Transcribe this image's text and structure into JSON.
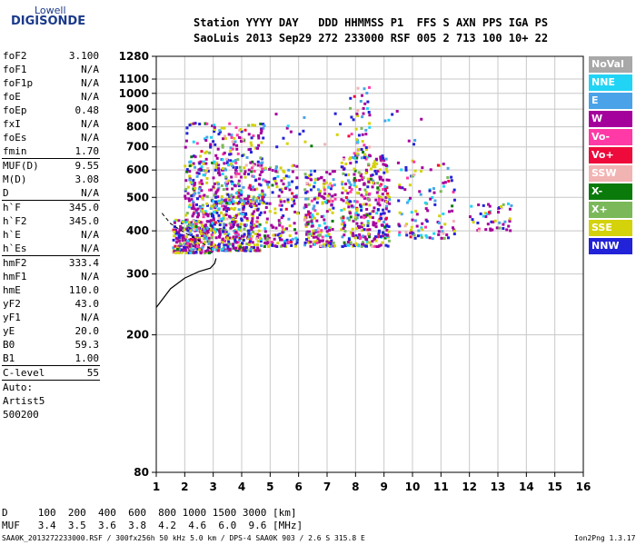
{
  "logo": {
    "top": "Lowell",
    "bottom": "DIGISONDE"
  },
  "header": {
    "line1": "Station YYYY DAY   DDD HHMMSS P1  FFS S AXN PPS IGA PS",
    "line2": "SaoLuis 2013 Sep29 272 233000 RSF 005 2 713 100 10+ 22"
  },
  "params_groups": [
    [
      [
        "foF2",
        "3.100"
      ],
      [
        "foF1",
        "N/A"
      ],
      [
        "foF1p",
        "N/A"
      ],
      [
        "foE",
        "N/A"
      ],
      [
        "foEp",
        "0.48"
      ],
      [
        "fxI",
        "N/A"
      ],
      [
        "foEs",
        "N/A"
      ],
      [
        "fmin",
        "1.70"
      ]
    ],
    [
      [
        "MUF(D)",
        "9.55"
      ],
      [
        "M(D)",
        "3.08"
      ],
      [
        "D",
        "N/A"
      ]
    ],
    [
      [
        "h`F",
        "345.0"
      ],
      [
        "h`F2",
        "345.0"
      ],
      [
        "h`E",
        "N/A"
      ],
      [
        "h`Es",
        "N/A"
      ]
    ],
    [
      [
        "hmF2",
        "333.4"
      ],
      [
        "hmF1",
        "N/A"
      ],
      [
        "hmE",
        "110.0"
      ],
      [
        "yF2",
        "43.0"
      ],
      [
        "yF1",
        "N/A"
      ],
      [
        "yE",
        "20.0"
      ],
      [
        "B0",
        "59.3"
      ],
      [
        "B1",
        "1.00"
      ]
    ],
    [
      [
        "C-level",
        "55"
      ]
    ]
  ],
  "autoscaling": [
    "Auto:",
    "Artist5",
    "500200"
  ],
  "legend": [
    {
      "label": "NoVal",
      "color": "#a8a8a8"
    },
    {
      "label": "NNE",
      "color": "#21d4f5"
    },
    {
      "label": "E",
      "color": "#4aa3e8"
    },
    {
      "label": "W",
      "color": "#a4009c"
    },
    {
      "label": "Vo-",
      "color": "#ff3aa6"
    },
    {
      "label": "Vo+",
      "color": "#ee0a3a"
    },
    {
      "label": "SSW",
      "color": "#f2b3b3"
    },
    {
      "label": "X-",
      "color": "#0a7a0a"
    },
    {
      "label": "X+",
      "color": "#7ab85a"
    },
    {
      "label": "SSE",
      "color": "#d4d20a"
    },
    {
      "label": "NNW",
      "color": "#2222d8"
    }
  ],
  "footer": {
    "d_row": "D     100  200  400  600  800 1000 1500 3000 [km]",
    "muf_row": "MUF   3.4  3.5  3.6  3.8  4.2  4.6  6.0  9.6 [MHz]",
    "file_line": "SAA0K_2013272233000.RSF / 300fx256h 50 kHz 5.0 km / DPS-4 SAA0K 903 / 2.6 S 315.8 E",
    "version": "Ion2Png 1.3.17"
  },
  "chart_data": {
    "type": "scatter",
    "xlim": [
      1,
      16
    ],
    "x_ticks": [
      "1",
      "2",
      "3",
      "4",
      "5",
      "6",
      "7",
      "8",
      "9",
      "10",
      "11",
      "12",
      "13",
      "14",
      "15",
      "16"
    ],
    "y_ticks": [
      {
        "v": 80,
        "label": "80"
      },
      {
        "v": 200,
        "label": "200"
      },
      {
        "v": 300,
        "label": "300"
      },
      {
        "v": 400,
        "label": "400"
      },
      {
        "v": 500,
        "label": "500"
      },
      {
        "v": 600,
        "label": "600"
      },
      {
        "v": 700,
        "label": "700"
      },
      {
        "v": 800,
        "label": "800"
      },
      {
        "v": 900,
        "label": "900"
      },
      {
        "v": 1000,
        "label": "1000"
      },
      {
        "v": 1100,
        "label": "1100"
      },
      {
        "v": 1280,
        "label": "1280"
      }
    ],
    "ylim": [
      80,
      1280
    ],
    "y_scale": "log",
    "grid": true,
    "echo_clusters": [
      {
        "f": [
          1.6,
          3.0
        ],
        "h": [
          345,
          430
        ],
        "n": 260
      },
      {
        "f": [
          2.0,
          3.0
        ],
        "h": [
          400,
          600
        ],
        "n": 150
      },
      {
        "f": [
          2.0,
          3.2
        ],
        "h": [
          600,
          820
        ],
        "n": 60
      },
      {
        "f": [
          3.0,
          4.7
        ],
        "h": [
          350,
          480
        ],
        "n": 320
      },
      {
        "f": [
          3.0,
          4.8
        ],
        "h": [
          480,
          600
        ],
        "n": 180
      },
      {
        "f": [
          3.0,
          4.8
        ],
        "h": [
          600,
          820
        ],
        "n": 120
      },
      {
        "f": [
          4.8,
          6.0
        ],
        "h": [
          360,
          620
        ],
        "n": 160
      },
      {
        "f": [
          6.2,
          7.3
        ],
        "h": [
          360,
          600
        ],
        "n": 200
      },
      {
        "f": [
          7.5,
          9.2
        ],
        "h": [
          360,
          660
        ],
        "n": 360
      },
      {
        "f": [
          7.8,
          8.5
        ],
        "h": [
          650,
          1040
        ],
        "n": 50
      },
      {
        "f": [
          9.5,
          11.5
        ],
        "h": [
          380,
          640
        ],
        "n": 120
      },
      {
        "f": [
          12.0,
          13.6
        ],
        "h": [
          400,
          480
        ],
        "n": 50
      },
      {
        "f": [
          4.5,
          10.5
        ],
        "h": [
          700,
          900
        ],
        "n": 30
      }
    ],
    "profile": [
      [
        1.0,
        240
      ],
      [
        1.5,
        272
      ],
      [
        2.0,
        292
      ],
      [
        2.5,
        305
      ],
      [
        2.9,
        312
      ],
      [
        3.05,
        322
      ],
      [
        3.1,
        333
      ]
    ],
    "trace_dashed": [
      [
        1.2,
        450
      ],
      [
        1.5,
        420
      ],
      [
        2.0,
        395
      ],
      [
        2.5,
        375
      ],
      [
        2.9,
        355
      ]
    ]
  }
}
